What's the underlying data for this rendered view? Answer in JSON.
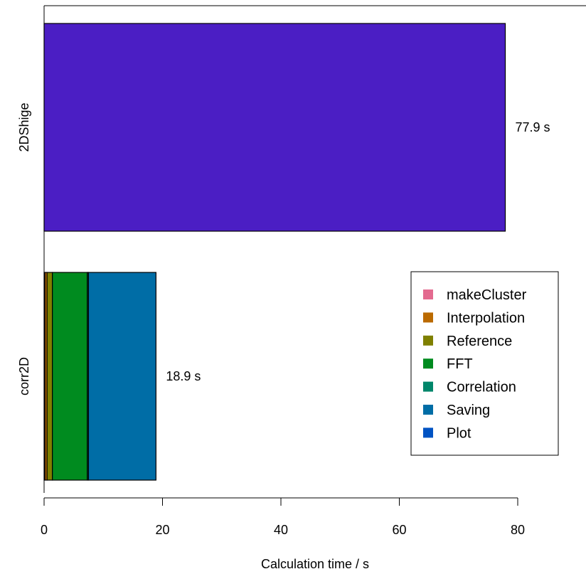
{
  "chart_data": {
    "type": "bar",
    "orientation": "horizontal",
    "stacked": true,
    "xlabel": "Calculation time / s",
    "xlim": [
      0,
      92
    ],
    "xticks": [
      0,
      20,
      40,
      60,
      80
    ],
    "grid": false,
    "legend_position": "right",
    "categories": [
      "corr2D",
      "2DShige"
    ],
    "series": [
      {
        "name": "makeCluster",
        "color": "#E36A8F",
        "values": [
          0.15,
          0
        ]
      },
      {
        "name": "Interpolation",
        "color": "#BB6A00",
        "values": [
          0.35,
          0
        ]
      },
      {
        "name": "Reference",
        "color": "#7F8000",
        "values": [
          0.9,
          0
        ]
      },
      {
        "name": "FFT",
        "color": "#008B1F",
        "values": [
          5.9,
          0
        ]
      },
      {
        "name": "Correlation",
        "color": "#00866A",
        "values": [
          0.2,
          0
        ]
      },
      {
        "name": "Saving",
        "color": "#006DA6",
        "values": [
          11.4,
          0
        ]
      },
      {
        "name": "Plot",
        "color": "#0053C3",
        "values": [
          0,
          0
        ]
      }
    ],
    "other_bars": [
      {
        "category": "2DShige",
        "value": 77.9,
        "color": "#4B1EC4"
      }
    ],
    "data_labels": [
      {
        "category": "2DShige",
        "text": "77.9 s"
      },
      {
        "category": "corr2D",
        "text": "18.9 s"
      }
    ]
  }
}
